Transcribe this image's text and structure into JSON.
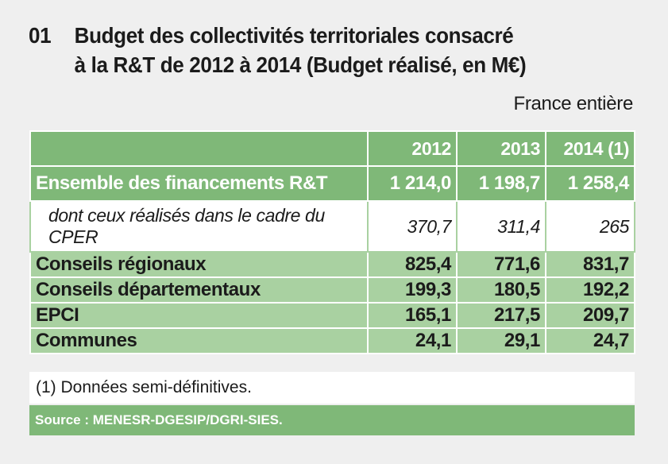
{
  "title": {
    "number": "01",
    "line1": "Budget des collectivités territoriales consacré",
    "line2": "à la R&T de 2012 à 2014 (Budget réalisé, en M€)"
  },
  "subtitle": "France entière",
  "chart_data": {
    "type": "table",
    "columns": [
      "2012",
      "2013",
      "2014 (1)"
    ],
    "rows": [
      {
        "label": "Ensemble des financements R&T",
        "values": [
          "1 214,0",
          "1 198,7",
          "1 258,4"
        ]
      },
      {
        "label": "dont ceux réalisés dans le cadre du CPER",
        "values": [
          "370,7",
          "311,4",
          "265"
        ]
      },
      {
        "label": "Conseils régionaux",
        "values": [
          "825,4",
          "771,6",
          "831,7"
        ]
      },
      {
        "label": "Conseils départementaux",
        "values": [
          "199,3",
          "180,5",
          "192,2"
        ]
      },
      {
        "label": "EPCI",
        "values": [
          "165,1",
          "217,5",
          "209,7"
        ]
      },
      {
        "label": "Communes",
        "values": [
          "24,1",
          "29,1",
          "24,7"
        ]
      }
    ]
  },
  "footnote": "(1) Données semi-définitives.",
  "source": "Source : MENESR-DGESIP/DGRI-SIES.",
  "colors": {
    "header_green": "#7fb878",
    "row_green": "#a9d1a1",
    "background": "#efefef"
  }
}
